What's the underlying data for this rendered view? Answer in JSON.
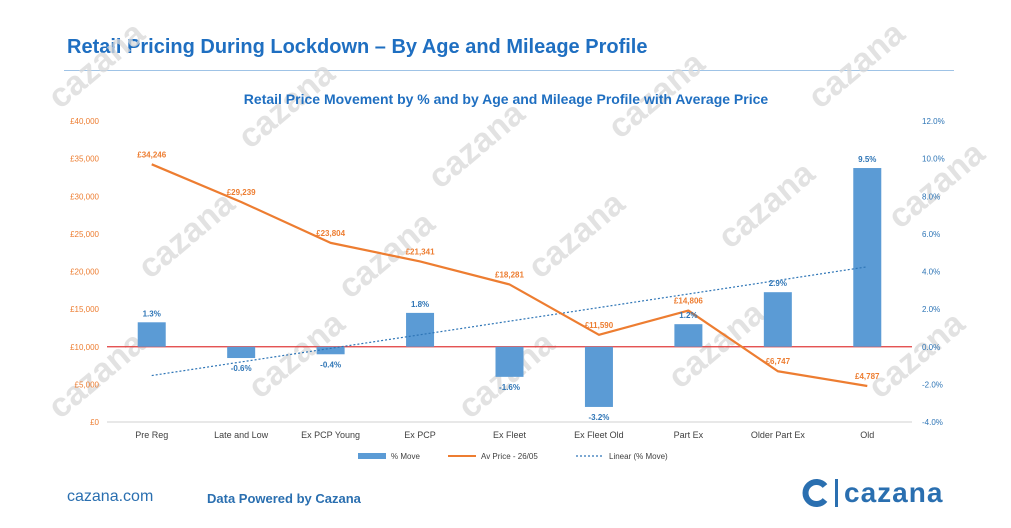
{
  "header": {
    "title": "Retail Pricing During Lockdown – By Age and Mileage Profile"
  },
  "footer": {
    "url": "cazana.com",
    "credit": "Data Powered by Cazana",
    "brand": "cazana"
  },
  "watermark": {
    "text": "cazana"
  },
  "colors": {
    "bar": "#5b9bd5",
    "line": "#ed7d31",
    "trend": "#2e75b6",
    "zero_line": "#e03c3c",
    "title": "#1f6fc1",
    "axis_text_left": "#ed7d31",
    "axis_text_right": "#2e75b6"
  },
  "chart_data": {
    "type": "bar",
    "title": "Retail Price Movement by % and by Age and Mileage Profile with Average Price",
    "categories": [
      "Pre Reg",
      "Late and Low",
      "Ex PCP Young",
      "Ex PCP",
      "Ex Fleet",
      "Ex Fleet Old",
      "Part Ex",
      "Older Part Ex",
      "Old"
    ],
    "series": [
      {
        "name": "% Move",
        "type": "bar",
        "axis": "right",
        "values": [
          1.3,
          -0.6,
          -0.4,
          1.8,
          -1.6,
          -3.2,
          1.2,
          2.9,
          9.5
        ],
        "labels": [
          "1.3%",
          "-0.6%",
          "-0.4%",
          "1.8%",
          "-1.6%",
          "-3.2%",
          "1.2%",
          "2.9%",
          "9.5%"
        ]
      },
      {
        "name": "Av Price - 26/05",
        "type": "line",
        "axis": "left",
        "values": [
          34246,
          29239,
          23804,
          21341,
          18281,
          11590,
          14806,
          6747,
          4787
        ],
        "labels": [
          "£34,246",
          "£29,239",
          "£23,804",
          "£21,341",
          "£18,281",
          "£11,590",
          "£14,806",
          "£6,747",
          "£4,787"
        ]
      },
      {
        "name": "Linear (% Move)",
        "type": "trendline",
        "axis": "right",
        "values": [
          -1.53,
          -0.81,
          -0.08,
          0.64,
          1.36,
          2.08,
          2.81,
          3.53,
          4.25
        ]
      }
    ],
    "y_left": {
      "ylim": [
        0,
        40000
      ],
      "ticks": [
        0,
        5000,
        10000,
        15000,
        20000,
        25000,
        30000,
        35000,
        40000
      ],
      "tick_labels": [
        "£0",
        "£5,000",
        "£10,000",
        "£15,000",
        "£20,000",
        "£25,000",
        "£30,000",
        "£35,000",
        "£40,000"
      ]
    },
    "y_right": {
      "ylim": [
        -4.0,
        12.0
      ],
      "ticks": [
        -4.0,
        -2.0,
        0.0,
        2.0,
        4.0,
        6.0,
        8.0,
        10.0,
        12.0
      ],
      "tick_labels": [
        "-4.0%",
        "-2.0%",
        "0.0%",
        "2.0%",
        "4.0%",
        "6.0%",
        "8.0%",
        "10.0%",
        "12.0%"
      ]
    },
    "grid": false,
    "legend": "bottom"
  }
}
